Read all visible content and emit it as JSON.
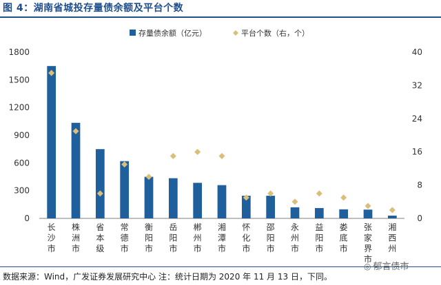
{
  "title": "图 4：湖南省城投存量债余额及平台个数",
  "source": "数据来源：Wind，广发证券发展研究中心  注：统计日期为 2020 年 11 月 13 日，下同。",
  "watermark": {
    "icon": "wechat-icon",
    "text": "郁言债市"
  },
  "colors": {
    "bar": "#1f5f9c",
    "marker": "#d9bf7a",
    "accent": "#1f4e8c"
  },
  "chart_data": {
    "type": "bar",
    "categories": [
      "长沙市",
      "株洲市",
      "省本级",
      "常德市",
      "衡阳市",
      "岳阳市",
      "郴州市",
      "湘潭市",
      "怀化市",
      "邵阳市",
      "永州市",
      "益阳市",
      "娄底市",
      "张家界市",
      "湘西州"
    ],
    "series": [
      {
        "name": "存量债余额（亿元）",
        "type": "bar",
        "axis": "left",
        "values": [
          1650,
          1035,
          750,
          620,
          450,
          435,
          385,
          360,
          245,
          245,
          120,
          112,
          98,
          95,
          30
        ]
      },
      {
        "name": "平台个数（右，个）",
        "type": "scatter",
        "axis": "right",
        "values": [
          35,
          21,
          6,
          13,
          10,
          15,
          16,
          15,
          5,
          6,
          4,
          6,
          5,
          3,
          2
        ]
      }
    ],
    "yleft": {
      "min": 0,
      "max": 1800,
      "ticks": [
        0,
        300,
        600,
        900,
        1200,
        1500,
        1800
      ]
    },
    "yright": {
      "min": 0,
      "max": 40,
      "ticks": [
        0,
        8,
        16,
        24,
        32,
        40
      ]
    },
    "legend": "top-center",
    "grid": false
  }
}
